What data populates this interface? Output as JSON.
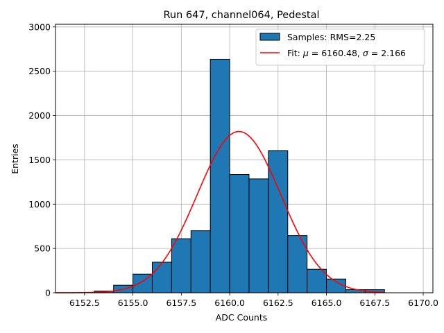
{
  "chart_data": {
    "type": "bar",
    "title": "Run 647, channel064, Pedestal",
    "xlabel": "ADC Counts",
    "ylabel": "Entries",
    "xlim": [
      6151.0,
      6170.5
    ],
    "ylim": [
      0,
      3030
    ],
    "grid": true,
    "legend_position": "top-right",
    "xticks": [
      "6152.5",
      "6155.0",
      "6157.5",
      "6160.0",
      "6162.5",
      "6165.0",
      "6167.5",
      "6170.0"
    ],
    "xtick_values": [
      6152.5,
      6155.0,
      6157.5,
      6160.0,
      6162.5,
      6165.0,
      6167.5,
      6170.0
    ],
    "yticks": [
      "0",
      "500",
      "1000",
      "1500",
      "2000",
      "2500",
      "3000"
    ],
    "ytick_values": [
      0,
      500,
      1000,
      1500,
      2000,
      2500,
      3000
    ],
    "series": [
      {
        "name": "Samples: RMS=2.25",
        "kind": "histogram",
        "color": "#1f77b4",
        "edge_color": "#000000",
        "bins": [
          {
            "x0": 6153.0,
            "x1": 6154.0,
            "count": 20
          },
          {
            "x0": 6154.0,
            "x1": 6155.0,
            "count": 85
          },
          {
            "x0": 6155.0,
            "x1": 6156.0,
            "count": 210
          },
          {
            "x0": 6156.0,
            "x1": 6157.0,
            "count": 345
          },
          {
            "x0": 6157.0,
            "x1": 6158.0,
            "count": 610
          },
          {
            "x0": 6158.0,
            "x1": 6159.0,
            "count": 700
          },
          {
            "x0": 6159.0,
            "x1": 6160.0,
            "count": 2635
          },
          {
            "x0": 6160.0,
            "x1": 6161.0,
            "count": 1335
          },
          {
            "x0": 6161.0,
            "x1": 6162.0,
            "count": 1285
          },
          {
            "x0": 6162.0,
            "x1": 6163.0,
            "count": 1605
          },
          {
            "x0": 6163.0,
            "x1": 6164.0,
            "count": 645
          },
          {
            "x0": 6164.0,
            "x1": 6165.0,
            "count": 265
          },
          {
            "x0": 6165.0,
            "x1": 6166.0,
            "count": 155
          },
          {
            "x0": 6166.0,
            "x1": 6167.0,
            "count": 35
          },
          {
            "x0": 6167.0,
            "x1": 6168.0,
            "count": 35
          }
        ]
      },
      {
        "name": "Fit: μ = 6160.48, σ = 2.166",
        "kind": "gaussian-fit",
        "color": "#ff0000",
        "mu": 6160.48,
        "sigma": 2.166,
        "amplitude": 1820,
        "x_range": [
          6151.0,
          6168.0
        ]
      }
    ],
    "legend": {
      "hist_label": "Samples: RMS=2.25",
      "fit_prefix": "Fit: ",
      "fit_mu_symbol": "μ",
      "fit_mu_text": " = 6160.48, ",
      "fit_sigma_symbol": "σ",
      "fit_sigma_text": " = 2.166"
    }
  }
}
